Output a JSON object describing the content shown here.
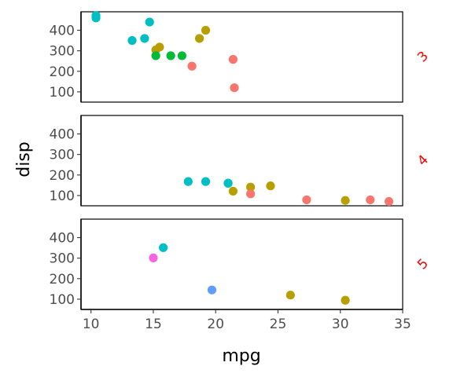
{
  "chart_data": {
    "type": "scatter",
    "facet_by": "gear",
    "xlabel": "mpg",
    "ylabel": "disp",
    "xlim": [
      9.2,
      35.0
    ],
    "ylim": [
      50,
      490
    ],
    "x_ticks": [
      10,
      15,
      20,
      25,
      30,
      35
    ],
    "y_ticks": [
      100,
      200,
      300,
      400
    ],
    "grid": false,
    "legend": "none",
    "series_colors": [
      "#F8766D",
      "#B79F00",
      "#00BA38",
      "#00BFC4",
      "#619CFF",
      "#F564E3"
    ],
    "panels": [
      {
        "strip": "3",
        "points": [
          {
            "x": 10.4,
            "y": 472,
            "color": "#00BFC4"
          },
          {
            "x": 10.4,
            "y": 460,
            "color": "#00BFC4"
          },
          {
            "x": 14.7,
            "y": 440,
            "color": "#00BFC4"
          },
          {
            "x": 19.2,
            "y": 400,
            "color": "#B79F00"
          },
          {
            "x": 13.3,
            "y": 350,
            "color": "#00BFC4"
          },
          {
            "x": 14.3,
            "y": 360,
            "color": "#00BFC4"
          },
          {
            "x": 18.7,
            "y": 360,
            "color": "#B79F00"
          },
          {
            "x": 15.5,
            "y": 318,
            "color": "#B79F00"
          },
          {
            "x": 15.2,
            "y": 304,
            "color": "#B79F00"
          },
          {
            "x": 15.2,
            "y": 276,
            "color": "#00BA38"
          },
          {
            "x": 16.4,
            "y": 276,
            "color": "#00BA38"
          },
          {
            "x": 17.3,
            "y": 276,
            "color": "#00BA38"
          },
          {
            "x": 21.4,
            "y": 258,
            "color": "#F8766D"
          },
          {
            "x": 18.1,
            "y": 225,
            "color": "#F8766D"
          },
          {
            "x": 21.5,
            "y": 120,
            "color": "#F8766D"
          }
        ]
      },
      {
        "strip": "4",
        "points": [
          {
            "x": 17.8,
            "y": 168,
            "color": "#00BFC4"
          },
          {
            "x": 19.2,
            "y": 168,
            "color": "#00BFC4"
          },
          {
            "x": 21.0,
            "y": 160,
            "color": "#00BFC4"
          },
          {
            "x": 21.0,
            "y": 160,
            "color": "#00BFC4"
          },
          {
            "x": 21.4,
            "y": 121,
            "color": "#B79F00"
          },
          {
            "x": 22.8,
            "y": 141,
            "color": "#B79F00"
          },
          {
            "x": 24.4,
            "y": 147,
            "color": "#B79F00"
          },
          {
            "x": 22.8,
            "y": 108,
            "color": "#F8766D"
          },
          {
            "x": 27.3,
            "y": 79,
            "color": "#F8766D"
          },
          {
            "x": 30.4,
            "y": 76,
            "color": "#B79F00"
          },
          {
            "x": 32.4,
            "y": 79,
            "color": "#F8766D"
          },
          {
            "x": 33.9,
            "y": 71,
            "color": "#F8766D"
          }
        ]
      },
      {
        "strip": "5",
        "points": [
          {
            "x": 15.8,
            "y": 351,
            "color": "#00BFC4"
          },
          {
            "x": 15.0,
            "y": 301,
            "color": "#F564E3"
          },
          {
            "x": 19.7,
            "y": 145,
            "color": "#619CFF"
          },
          {
            "x": 26.0,
            "y": 120,
            "color": "#B79F00"
          },
          {
            "x": 30.4,
            "y": 95,
            "color": "#B79F00"
          }
        ]
      }
    ]
  }
}
